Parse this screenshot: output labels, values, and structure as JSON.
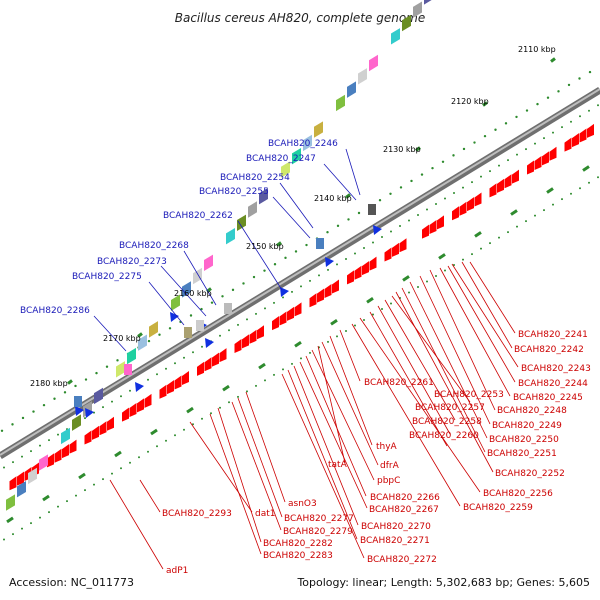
{
  "title": "Bacillus cereus AH820, complete genome",
  "footer": {
    "accession": "Accession: NC_011773",
    "summary": "Topology: linear; Length: 5,302,683 bp; Genes: 5,605"
  },
  "colors": {
    "backbone": "#888888",
    "tick": "#2e8b2e",
    "forward_gene": "#ff0000",
    "blue_label": "#1a1ab8",
    "red_label": "#cc0000"
  },
  "kbp_ticks": [
    "2110 kbp",
    "2120 kbp",
    "2130 kbp",
    "2140 kbp",
    "2150 kbp",
    "2160 kbp",
    "2170 kbp",
    "2180 kbp"
  ],
  "upper_labels": [
    "BCAH820_2246",
    "BCAH820_2247",
    "BCAH820_2254",
    "BCAH820_2255",
    "BCAH820_2262",
    "BCAH820_2268",
    "BCAH820_2273",
    "BCAH820_2275",
    "BCAH820_2286"
  ],
  "lower_labels": [
    "BCAH820_2241",
    "BCAH820_2242",
    "BCAH820_2243",
    "BCAH820_2244",
    "BCAH820_2245",
    "BCAH820_2248",
    "BCAH820_2249",
    "BCAH820_2250",
    "BCAH820_2251",
    "BCAH820_2252",
    "BCAH820_2253",
    "BCAH820_2261",
    "BCAH820_2257",
    "BCAH820_2258",
    "BCAH820_2260",
    "BCAH820_2256",
    "BCAH820_2259",
    "thyA",
    "dfrA",
    "tatA",
    "pbpC",
    "BCAH820_2266",
    "BCAH820_2267",
    "BCAH820_2270",
    "BCAH820_2271",
    "BCAH820_2272",
    "asnO3",
    "BCAH820_2277",
    "BCAH820_2279",
    "BCAH820_2282",
    "BCAH820_2283",
    "dat1",
    "BCAH820_2293",
    "adP1"
  ]
}
